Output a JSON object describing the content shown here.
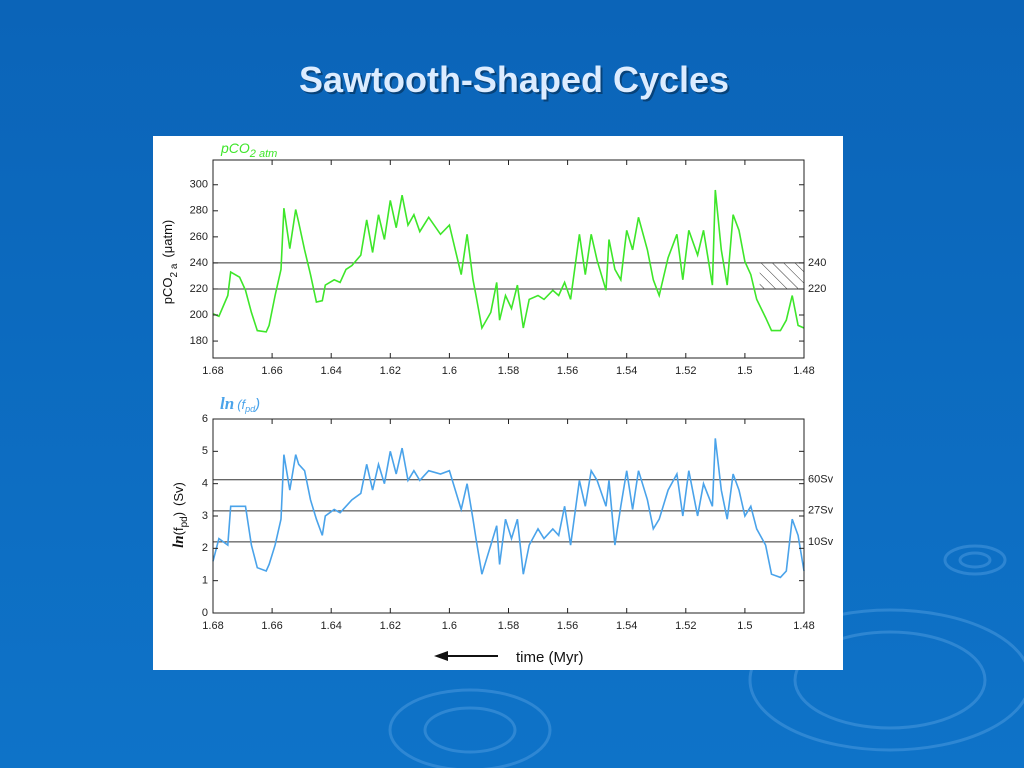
{
  "title": "Sawtooth-Shaped Cycles",
  "footer": {
    "xlabel": "time (Myr)"
  },
  "chart_data": [
    {
      "type": "line",
      "title": [
        "pCO",
        "2 atm"
      ],
      "ylabel": [
        "pCO",
        "2 a",
        "(μatm)"
      ],
      "x": [
        1.68,
        1.678,
        1.675,
        1.674,
        1.671,
        1.669,
        1.667,
        1.665,
        1.662,
        1.661,
        1.659,
        1.657,
        1.656,
        1.654,
        1.652,
        1.651,
        1.649,
        1.647,
        1.645,
        1.643,
        1.642,
        1.639,
        1.637,
        1.635,
        1.633,
        1.63,
        1.628,
        1.626,
        1.624,
        1.622,
        1.62,
        1.618,
        1.616,
        1.614,
        1.612,
        1.61,
        1.607,
        1.603,
        1.6,
        1.598,
        1.596,
        1.594,
        1.592,
        1.591,
        1.589,
        1.586,
        1.584,
        1.583,
        1.581,
        1.579,
        1.577,
        1.575,
        1.573,
        1.57,
        1.568,
        1.565,
        1.563,
        1.561,
        1.559,
        1.556,
        1.554,
        1.552,
        1.55,
        1.547,
        1.546,
        1.544,
        1.542,
        1.54,
        1.538,
        1.536,
        1.533,
        1.531,
        1.529,
        1.526,
        1.523,
        1.521,
        1.519,
        1.516,
        1.514,
        1.511,
        1.51,
        1.508,
        1.506,
        1.504,
        1.502,
        1.5,
        1.498,
        1.496,
        1.493,
        1.491,
        1.488,
        1.486,
        1.484,
        1.482,
        1.48
      ],
      "series": [
        {
          "name": "pCO2",
          "color": "#3ee62a",
          "values": [
            201,
            199,
            215,
            233,
            229,
            219,
            202,
            188,
            187,
            192,
            215,
            235,
            282,
            251,
            281,
            271,
            250,
            231,
            210,
            211,
            223,
            227,
            225,
            235,
            238,
            246,
            273,
            248,
            277,
            258,
            288,
            267,
            292,
            269,
            277,
            264,
            275,
            262,
            269,
            250,
            231,
            262,
            227,
            215,
            190,
            202,
            225,
            196,
            215,
            205,
            223,
            190,
            212,
            215,
            212,
            219,
            215,
            225,
            212,
            262,
            231,
            262,
            242,
            219,
            258,
            235,
            227,
            265,
            250,
            275,
            250,
            227,
            215,
            244,
            262,
            227,
            265,
            246,
            265,
            223,
            296,
            250,
            223,
            277,
            265,
            241,
            231,
            212,
            198,
            188,
            188,
            196,
            215,
            192,
            190
          ]
        }
      ],
      "xlim": [
        1.68,
        1.48
      ],
      "ylim": [
        167,
        319
      ],
      "xticks": [
        1.68,
        1.66,
        1.64,
        1.62,
        1.6,
        1.58,
        1.56,
        1.54,
        1.52,
        1.5,
        1.48
      ],
      "yticks": [
        180,
        200,
        220,
        240,
        260,
        280,
        300
      ],
      "reference_lines": [
        240,
        220
      ],
      "hatched_region": {
        "x": [
          1.495,
          1.48
        ],
        "y": [
          220,
          240
        ]
      }
    },
    {
      "type": "line",
      "title": [
        "ln",
        "(f",
        "pd",
        ")"
      ],
      "ylabel": [
        "ln",
        "(f",
        "pd",
        ")",
        "(Sv)"
      ],
      "x": [
        1.68,
        1.678,
        1.675,
        1.674,
        1.671,
        1.669,
        1.667,
        1.665,
        1.662,
        1.661,
        1.659,
        1.657,
        1.656,
        1.654,
        1.652,
        1.651,
        1.649,
        1.647,
        1.645,
        1.643,
        1.642,
        1.639,
        1.637,
        1.635,
        1.633,
        1.63,
        1.628,
        1.626,
        1.624,
        1.622,
        1.62,
        1.618,
        1.616,
        1.614,
        1.612,
        1.61,
        1.607,
        1.603,
        1.6,
        1.598,
        1.596,
        1.594,
        1.592,
        1.591,
        1.589,
        1.586,
        1.584,
        1.583,
        1.581,
        1.579,
        1.577,
        1.575,
        1.573,
        1.57,
        1.568,
        1.565,
        1.563,
        1.561,
        1.559,
        1.556,
        1.554,
        1.552,
        1.55,
        1.547,
        1.546,
        1.544,
        1.542,
        1.54,
        1.538,
        1.536,
        1.533,
        1.531,
        1.529,
        1.526,
        1.523,
        1.521,
        1.519,
        1.516,
        1.514,
        1.511,
        1.51,
        1.508,
        1.506,
        1.504,
        1.502,
        1.5,
        1.498,
        1.496,
        1.493,
        1.491,
        1.488,
        1.486,
        1.484,
        1.482,
        1.48
      ],
      "series": [
        {
          "name": "ln(fpd)",
          "color": "#4aa3ea",
          "values": [
            1.6,
            2.3,
            2.1,
            3.3,
            3.3,
            3.3,
            2.1,
            1.4,
            1.3,
            1.5,
            2.1,
            2.9,
            4.9,
            3.8,
            4.9,
            4.6,
            4.4,
            3.5,
            2.9,
            2.4,
            3.0,
            3.2,
            3.1,
            3.3,
            3.5,
            3.7,
            4.6,
            3.8,
            4.6,
            4.0,
            5.0,
            4.3,
            5.1,
            4.1,
            4.4,
            4.1,
            4.4,
            4.3,
            4.4,
            3.8,
            3.2,
            4.0,
            2.9,
            2.3,
            1.2,
            2.1,
            2.7,
            1.5,
            2.9,
            2.3,
            2.9,
            1.2,
            2.1,
            2.6,
            2.3,
            2.6,
            2.4,
            3.3,
            2.1,
            4.1,
            3.3,
            4.4,
            4.1,
            3.3,
            4.1,
            2.1,
            3.3,
            4.4,
            3.2,
            4.4,
            3.5,
            2.6,
            2.9,
            3.8,
            4.3,
            3.0,
            4.4,
            3.0,
            4.0,
            3.3,
            5.4,
            3.8,
            2.9,
            4.3,
            3.8,
            3.0,
            3.3,
            2.6,
            2.1,
            1.2,
            1.1,
            1.3,
            2.9,
            2.4,
            1.3
          ]
        }
      ],
      "xlim": [
        1.68,
        1.48
      ],
      "ylim": [
        0,
        6
      ],
      "xticks": [
        1.68,
        1.66,
        1.64,
        1.62,
        1.6,
        1.58,
        1.56,
        1.54,
        1.52,
        1.5,
        1.48
      ],
      "yticks": [
        0,
        1,
        2,
        3,
        4,
        5,
        6
      ],
      "reference_lines": [
        {
          "value": 4.12,
          "label": "60Sv"
        },
        {
          "value": 3.16,
          "label": "27Sv"
        },
        {
          "value": 2.2,
          "label": "10Sv"
        }
      ]
    }
  ]
}
